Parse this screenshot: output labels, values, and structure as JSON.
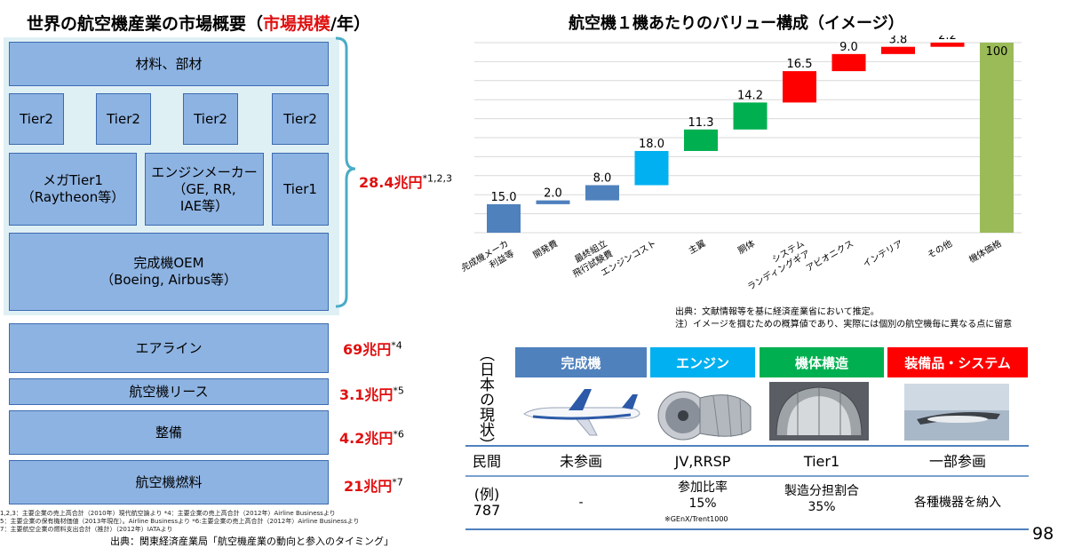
{
  "left": {
    "title_prefix": "世界の航空機産業の市場概要（",
    "title_highlight": "市場規模",
    "title_suffix": "/年）",
    "boxes": {
      "materials": "材料、部材",
      "tier2": [
        "Tier2",
        "Tier2",
        "Tier2",
        "Tier2"
      ],
      "mega_tier1": "メガTier1\n（Raytheon等）",
      "engine_maker": "エンジンメーカー\n（GE, RR,\nIAE等）",
      "tier1": "Tier1",
      "oem": "完成機OEM\n（Boeing, Airbus等）",
      "airline": "エアライン",
      "lease": "航空機リース",
      "maintenance": "整備",
      "fuel": "航空機燃料"
    },
    "values": {
      "total": "28.4兆円",
      "total_note": "*1,2,3",
      "airline": "69兆円",
      "airline_note": "*4",
      "lease": "3.1兆円",
      "lease_note": "*5",
      "maintenance": "4.2兆円",
      "maintenance_note": "*6",
      "fuel": "21兆円",
      "fuel_note": "*7"
    },
    "footnotes": [
      "1,2,3：主要企業の売上高合計（2010年）現代航空論より *4：主要企業の売上高合計（2012年）Airline Businessより",
      "5：主要企業の保有機材価値（2013年現在）。Airline Businessより *6:主要企業の売上高合計（2012年）Airline Businessより",
      "7：主要航空企業の燃料支出合計（推計）（2012年）IATAより"
    ],
    "source": "出典：関東経済産業局「航空機産業の動向と参入のタイミング」"
  },
  "right": {
    "title": "航空機１機あたりのバリュー構成（イメージ）"
  },
  "chart_data": {
    "type": "waterfall",
    "title": "航空機１機あたりのバリュー構成（イメージ）",
    "categories": [
      "完成機メーカ利益等",
      "開発費",
      "最終組立飛行試験費",
      "エンジンコスト",
      "主翼",
      "胴体",
      "システムランディングギア",
      "アビオニクス",
      "インテリア",
      "その他",
      "機体価格"
    ],
    "category_lines": [
      [
        "完成機メーカ",
        "利益等"
      ],
      [
        "開発費"
      ],
      [
        "最終組立",
        "飛行試験費"
      ],
      [
        "エンジンコスト"
      ],
      [
        "主翼"
      ],
      [
        "胴体"
      ],
      [
        "システム",
        "ランディングギア"
      ],
      [
        "アビオニクス"
      ],
      [
        "インテリア"
      ],
      [
        "その他"
      ],
      [
        "機体価格"
      ]
    ],
    "values": [
      15.0,
      2.0,
      8.0,
      18.0,
      11.3,
      14.2,
      16.5,
      9.0,
      3.8,
      2.2,
      100
    ],
    "value_labels": [
      "15.0",
      "2.0",
      "8.0",
      "18.0",
      "11.3",
      "14.2",
      "16.5",
      "9.0",
      "3.8",
      "2.2",
      "100"
    ],
    "colors": [
      "#4f81bd",
      "#4f81bd",
      "#4f81bd",
      "#00b0f0",
      "#00b050",
      "#00b050",
      "#ff0000",
      "#ff0000",
      "#ff0000",
      "#ff0000",
      "#9bbb59"
    ],
    "ylim": [
      0,
      100
    ],
    "grid": true,
    "legend": "none"
  },
  "sources": [
    "出典：文献情報等を基に経済産業省において推定。",
    "注）イメージを掴むための概算値であり、実際には個別の航空機毎に異なる点に留意"
  ],
  "table": {
    "side_label": "（日本の現状）",
    "headers": [
      {
        "label": "完成機",
        "color": "#4f81bd"
      },
      {
        "label": "エンジン",
        "color": "#00b0f0"
      },
      {
        "label": "機体構造",
        "color": "#00b050"
      },
      {
        "label": "装備品・システム",
        "color": "#ff0000"
      }
    ],
    "row1": {
      "label": "民間",
      "cells": [
        "未参画",
        "JV,RRSP",
        "Tier1",
        "一部参画"
      ]
    },
    "row2": {
      "label": "(例)\n787",
      "cells": [
        "-",
        "参加比率\n15%",
        "製造分担割合\n35%",
        "各種機器を納入"
      ],
      "note": "※GEnX/Trent1000"
    }
  },
  "page_number": "98"
}
